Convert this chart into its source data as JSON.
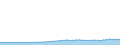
{
  "values": [
    180,
    160,
    190,
    170,
    185,
    165,
    190,
    175,
    185,
    170,
    180,
    165,
    185,
    175,
    190,
    180,
    195,
    175,
    195,
    182,
    195,
    182,
    200,
    188,
    205,
    192,
    210,
    195,
    220,
    205,
    235,
    215,
    255,
    235,
    270,
    248,
    290,
    262,
    310,
    278,
    335,
    298,
    355,
    315,
    370,
    325,
    345,
    295,
    360,
    310,
    375,
    322,
    380,
    328,
    362,
    310,
    350,
    298,
    345,
    292,
    360,
    305,
    370,
    315,
    355,
    300,
    345,
    290,
    380,
    330,
    410,
    355,
    440,
    375,
    420,
    358,
    430,
    365,
    415,
    352
  ],
  "line_color": "#4d9fd6",
  "fill_color": "#a8d4ee",
  "background_color": "#ffffff",
  "ylim_min": 0,
  "ylim_max": 3200
}
